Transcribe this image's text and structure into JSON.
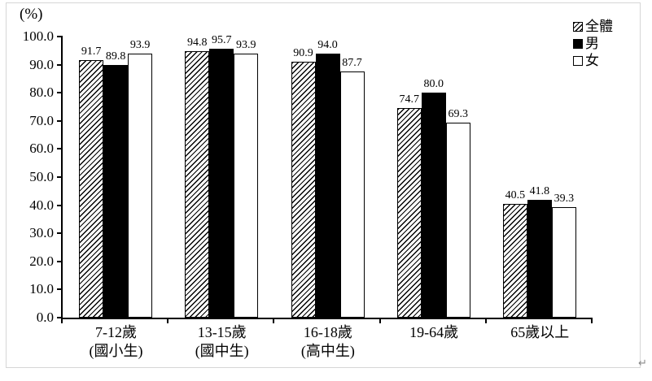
{
  "chart_data": {
    "type": "bar",
    "unit_label": "(%)",
    "ylim": [
      0,
      100
    ],
    "ytick_step": 10,
    "ytick_labels": [
      "100.0",
      "90.0",
      "80.0",
      "70.0",
      "60.0",
      "50.0",
      "40.0",
      "30.0",
      "20.0",
      "10.0",
      "0.0"
    ],
    "grid": false,
    "legend_position": "top-right",
    "categories": [
      "7-12歲",
      "13-15歲",
      "16-18歲",
      "19-64歲",
      "65歲以上"
    ],
    "category_sublabels": [
      "(國小生)",
      "(國中生)",
      "(高中生)",
      "",
      ""
    ],
    "series": [
      {
        "name": "全體",
        "pattern": "hatched",
        "values": [
          91.7,
          94.8,
          90.9,
          74.7,
          40.5
        ]
      },
      {
        "name": "男",
        "pattern": "solid-black",
        "values": [
          89.8,
          95.7,
          94.0,
          80.0,
          41.8
        ]
      },
      {
        "name": "女",
        "pattern": "white",
        "values": [
          93.9,
          93.9,
          87.7,
          69.3,
          39.3
        ]
      }
    ],
    "value_label_decimals": 1,
    "colors": {
      "bar_black": "#000000",
      "bar_white": "#ffffff",
      "hatch_line": "#000000",
      "axis": "#000000",
      "text": "#000000",
      "frame_border": "#d6d6d6",
      "paragraph_mark_color": "#888888"
    }
  },
  "frame": {
    "paragraph_mark": "↵"
  }
}
